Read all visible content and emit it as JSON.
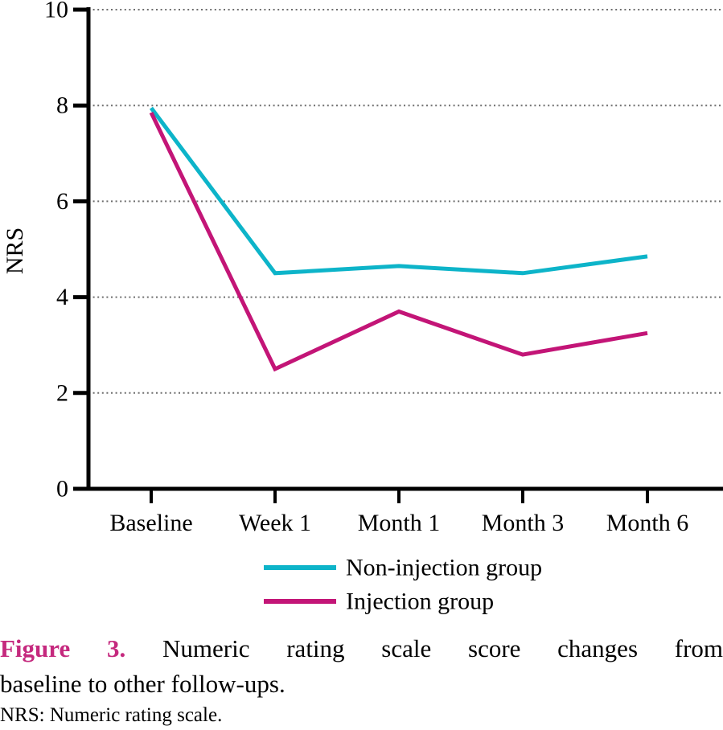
{
  "colors": {
    "non_injection_line": "#0db4c9",
    "injection_line": "#c31577",
    "caption_label": "#c5297e",
    "axis": "#000000",
    "grid": "#6e6e6e"
  },
  "chart_data": {
    "type": "line",
    "title": "",
    "xlabel": "",
    "ylabel": "NRS",
    "ylim": [
      0,
      10
    ],
    "yticks": [
      0,
      2,
      4,
      6,
      8,
      10
    ],
    "grid": "dotted horizontal gridlines at y=2,4,6,8,10",
    "legend_position": "bottom",
    "categories": [
      "Baseline",
      "Week 1",
      "Month 1",
      "Month 3",
      "Month 6"
    ],
    "series": [
      {
        "name": "Non-injection group",
        "color": "#0db4c9",
        "values": [
          7.95,
          4.5,
          4.65,
          4.5,
          4.85
        ]
      },
      {
        "name": "Injection group",
        "color": "#c31577",
        "values": [
          7.85,
          2.5,
          3.7,
          2.8,
          3.25
        ]
      }
    ]
  },
  "figure": {
    "caption_label": "Figure 3.",
    "caption_line1": "Numeric rating scale score changes from",
    "caption_line2": "baseline to other follow-ups.",
    "footnote": "NRS: Numeric rating scale."
  }
}
